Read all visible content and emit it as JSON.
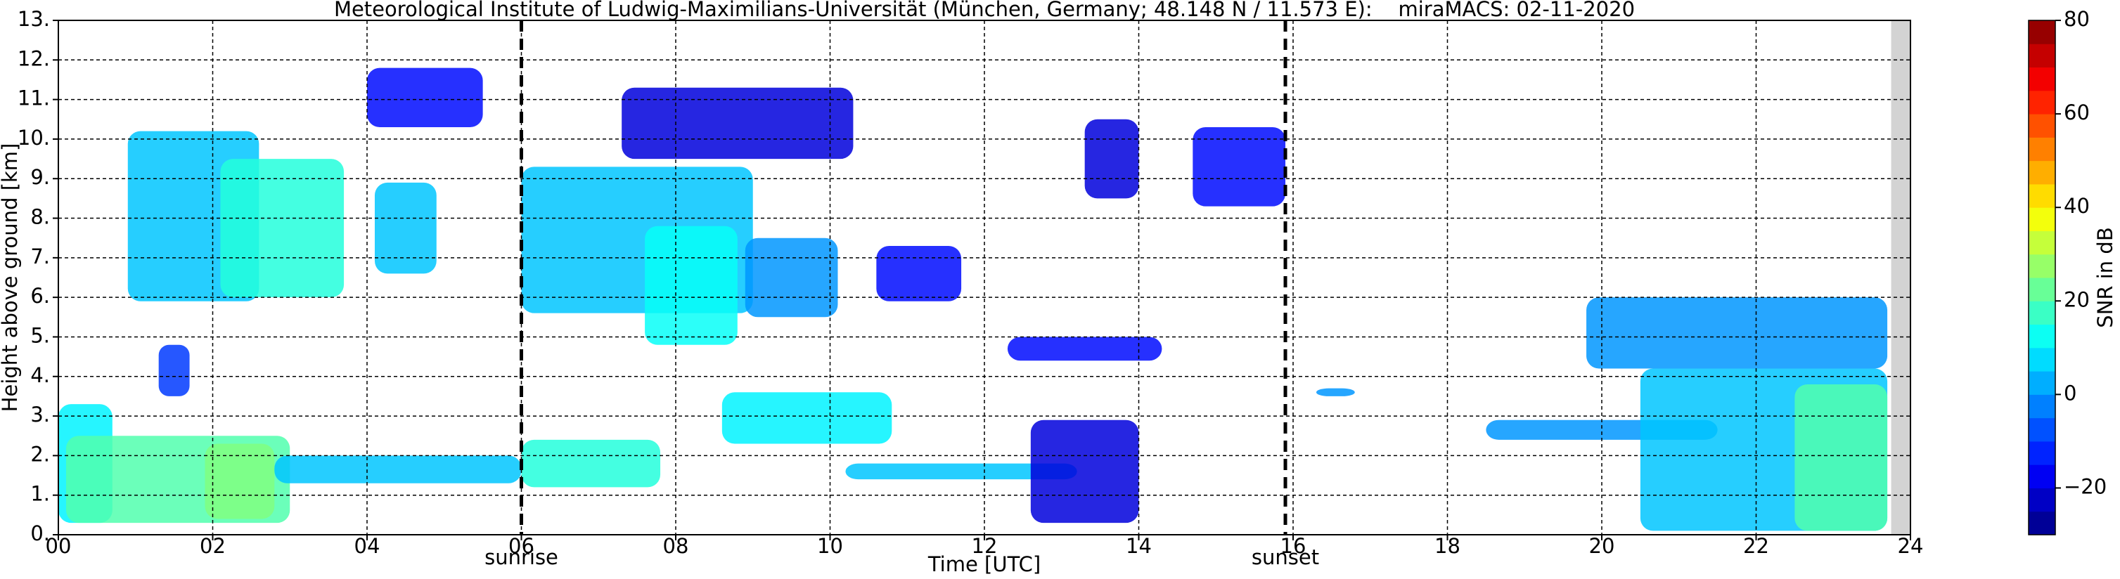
{
  "chart_data": {
    "type": "time-height",
    "title": "Meteorological Institute of Ludwig-Maximilians-Universität (München, Germany; 48.148 N / 11.573 E):    miraMACS: 02-11-2020",
    "x_label": "Time [UTC]",
    "y_label": "Height above ground [km]",
    "colorbar_label": "SNR in dB",
    "colormap": "jet",
    "clim": [
      -30,
      80
    ],
    "cticks": [
      {
        "value": -20,
        "label": "−20"
      },
      0,
      20,
      40,
      60,
      80
    ],
    "xlim": [
      0,
      24
    ],
    "xticks": [
      {
        "value": 0,
        "label": "00"
      },
      {
        "value": 2,
        "label": "02"
      },
      {
        "value": 4,
        "label": "04"
      },
      {
        "value": 6,
        "label": "06"
      },
      {
        "value": 8,
        "label": "08"
      },
      10,
      12,
      14,
      16,
      18,
      20,
      22,
      24
    ],
    "ylim": [
      0,
      13
    ],
    "yticks": [
      {
        "value": 0,
        "label": "0."
      },
      {
        "value": 1,
        "label": "1."
      },
      {
        "value": 2,
        "label": "2."
      },
      {
        "value": 3,
        "label": "3."
      },
      {
        "value": 4,
        "label": "4."
      },
      {
        "value": 5,
        "label": "5."
      },
      {
        "value": 6,
        "label": "6."
      },
      {
        "value": 7,
        "label": "7."
      },
      {
        "value": 8,
        "label": "8."
      },
      {
        "value": 9,
        "label": "9."
      },
      {
        "value": 10,
        "label": "10."
      },
      {
        "value": 11,
        "label": "11."
      },
      {
        "value": 12,
        "label": "12."
      },
      {
        "value": 13,
        "label": "13."
      }
    ],
    "grid": true,
    "markers": [
      {
        "x": 6.0,
        "label": "sunrise"
      },
      {
        "x": 15.9,
        "label": "sunset"
      }
    ],
    "no_data": [
      23.75,
      24
    ],
    "echoes": [
      {
        "x": [
          0,
          0.7
        ],
        "y": [
          0.3,
          3.3
        ],
        "value": 10
      },
      {
        "x": [
          0.1,
          3.0
        ],
        "y": [
          0.3,
          2.5
        ],
        "value": 20
      },
      {
        "x": [
          0.9,
          2.6
        ],
        "y": [
          5.9,
          10.2
        ],
        "value": 5
      },
      {
        "x": [
          2.1,
          3.7
        ],
        "y": [
          6.0,
          9.5
        ],
        "value": 15
      },
      {
        "x": [
          1.9,
          2.8
        ],
        "y": [
          0.4,
          2.3
        ],
        "value": 25
      },
      {
        "x": [
          4.0,
          5.5
        ],
        "y": [
          10.3,
          11.8
        ],
        "value": -15
      },
      {
        "x": [
          4.1,
          4.9
        ],
        "y": [
          6.6,
          8.9
        ],
        "value": 5
      },
      {
        "x": [
          1.3,
          1.7
        ],
        "y": [
          3.5,
          4.8
        ],
        "value": -10
      },
      {
        "x": [
          2.8,
          6.0
        ],
        "y": [
          1.3,
          2.0
        ],
        "value": 5
      },
      {
        "x": [
          6.0,
          9.0
        ],
        "y": [
          5.6,
          9.3
        ],
        "value": 5
      },
      {
        "x": [
          7.6,
          8.8
        ],
        "y": [
          4.8,
          7.8
        ],
        "value": 12
      },
      {
        "x": [
          7.3,
          10.3
        ],
        "y": [
          9.5,
          11.3
        ],
        "value": -20
      },
      {
        "x": [
          8.9,
          10.1
        ],
        "y": [
          5.5,
          7.5
        ],
        "value": 0
      },
      {
        "x": [
          6.0,
          7.8
        ],
        "y": [
          1.2,
          2.4
        ],
        "value": 15
      },
      {
        "x": [
          8.6,
          10.8
        ],
        "y": [
          2.3,
          3.6
        ],
        "value": 10
      },
      {
        "x": [
          10.2,
          13.2
        ],
        "y": [
          1.4,
          1.8
        ],
        "value": 5
      },
      {
        "x": [
          10.6,
          11.7
        ],
        "y": [
          5.9,
          7.3
        ],
        "value": -15
      },
      {
        "x": [
          12.6,
          14.0
        ],
        "y": [
          0.3,
          2.9
        ],
        "value": -20
      },
      {
        "x": [
          12.3,
          14.3
        ],
        "y": [
          4.4,
          5.0
        ],
        "value": -15
      },
      {
        "x": [
          13.3,
          14.0
        ],
        "y": [
          8.5,
          10.5
        ],
        "value": -20
      },
      {
        "x": [
          14.7,
          15.9
        ],
        "y": [
          8.3,
          10.3
        ],
        "value": -15
      },
      {
        "x": [
          19.8,
          23.7
        ],
        "y": [
          4.2,
          6.0
        ],
        "value": 0
      },
      {
        "x": [
          18.5,
          21.5
        ],
        "y": [
          2.4,
          2.9
        ],
        "value": 0
      },
      {
        "x": [
          20.5,
          23.7
        ],
        "y": [
          0.1,
          4.2
        ],
        "value": 5
      },
      {
        "x": [
          16.3,
          16.8
        ],
        "y": [
          3.5,
          3.7
        ],
        "value": 0
      },
      {
        "x": [
          22.5,
          23.7
        ],
        "y": [
          0.1,
          3.8
        ],
        "value": 20
      }
    ]
  }
}
